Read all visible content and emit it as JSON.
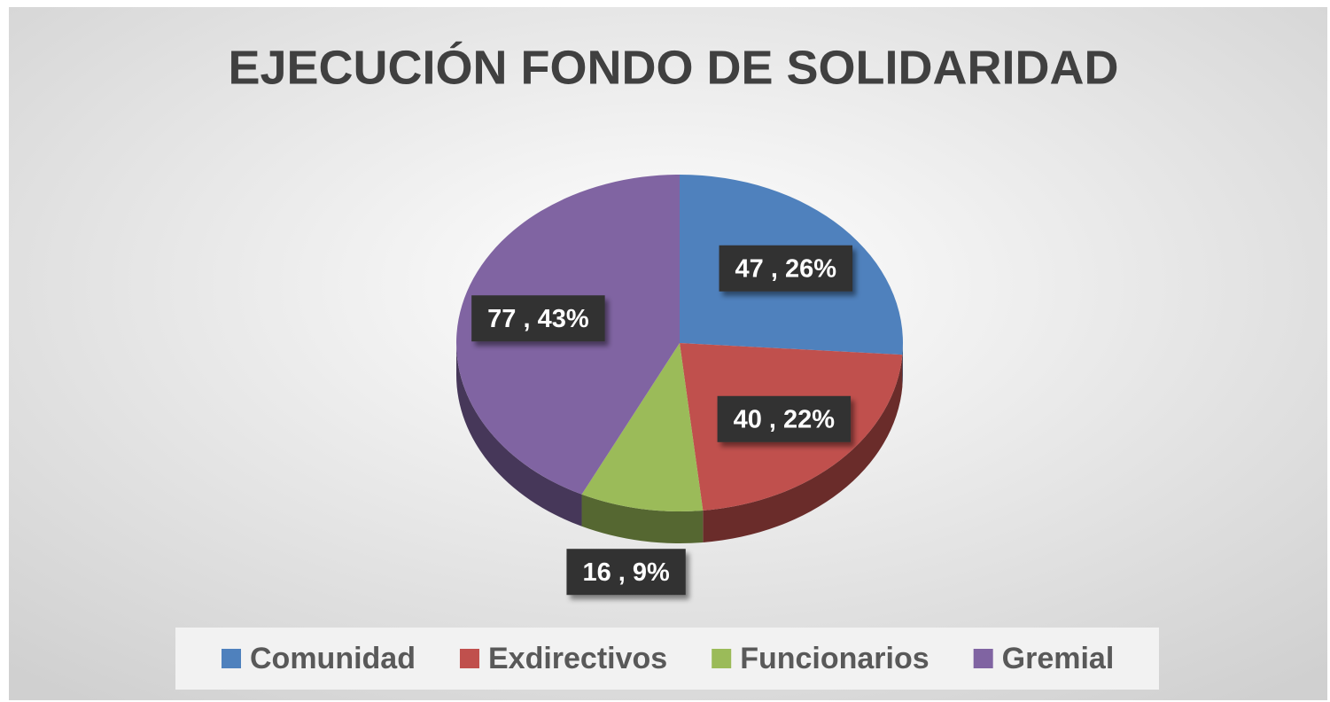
{
  "chart_data": {
    "type": "pie",
    "title": "EJECUCIÓN FONDO DE SOLIDARIDAD",
    "categories": [
      "Comunidad",
      "Exdirectivos",
      "Funcionarios",
      "Gremial"
    ],
    "values": [
      47,
      40,
      16,
      77
    ],
    "value_labels": [
      "47 , 26%",
      "40 , 22%",
      "16 , 9%",
      "77 , 43%"
    ],
    "colors": [
      "#4f81bd",
      "#c0504d",
      "#9bbb59",
      "#8064a2"
    ],
    "legend": "bottom"
  }
}
